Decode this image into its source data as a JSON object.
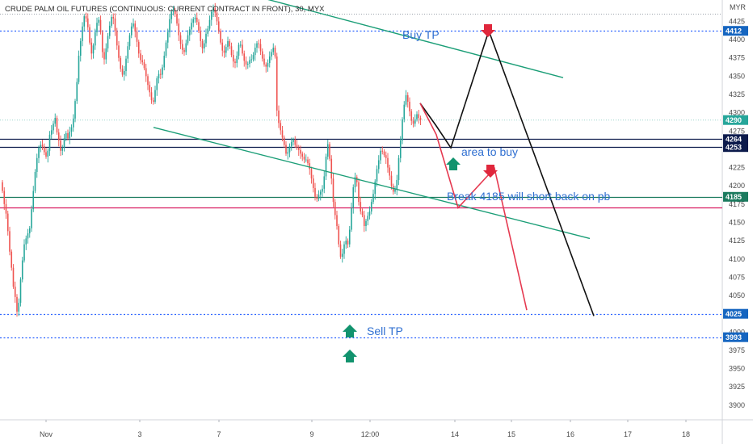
{
  "chart_data": {
    "type": "candlestick",
    "title": "CRUDE PALM OIL FUTURES (CONTINUOUS: CURRENT CONTRACT IN FRONT), 30, MYX",
    "currency": "MYR",
    "y_ticks": [
      4425,
      4400,
      4375,
      4350,
      4325,
      4300,
      4275,
      4250,
      4225,
      4200,
      4175,
      4150,
      4125,
      4100,
      4075,
      4050,
      4025,
      4000,
      3975,
      3950,
      3925,
      3900
    ],
    "ylim": [
      3880,
      4452
    ],
    "x_ticks": [
      "Nov",
      "3",
      "7",
      "9",
      "12:00",
      "14",
      "15",
      "16",
      "17",
      "18"
    ],
    "price_labels": [
      {
        "value": 4412,
        "text": "4412",
        "color": "#1565c0"
      },
      {
        "value": 4290,
        "text": "4290",
        "color": "#26a69a"
      },
      {
        "value": 4264,
        "text": "4264",
        "color": "#0d1b4c"
      },
      {
        "value": 4253,
        "text": "4253",
        "color": "#0d1b4c"
      },
      {
        "value": 4185,
        "text": "4185",
        "color": "#1b7a5e"
      },
      {
        "value": 4025,
        "text": "4025",
        "color": "#1565c0"
      },
      {
        "value": 3993,
        "text": "3993",
        "color": "#1565c0"
      }
    ],
    "horizontal_levels": [
      {
        "value": 4412,
        "style": "dotted",
        "color": "#2962ff"
      },
      {
        "value": 4264,
        "style": "solid",
        "color": "#0d1b4c"
      },
      {
        "value": 4253,
        "style": "solid",
        "color": "#0d1b4c"
      },
      {
        "value": 4185,
        "style": "solid",
        "color": "#1b7a5e"
      },
      {
        "value": 4170,
        "style": "solid",
        "color": "#d81b60"
      },
      {
        "value": 4025,
        "style": "dotted",
        "color": "#2962ff"
      },
      {
        "value": 3993,
        "style": "dotted",
        "color": "#2962ff"
      }
    ],
    "annotations": [
      {
        "text": "Buy TP"
      },
      {
        "text": "area to buy"
      },
      {
        "text": "Break 4185 will short back on pb"
      },
      {
        "text": "Sell TP"
      }
    ],
    "trend_lines": [
      {
        "name": "upper-channel",
        "from": [
          280,
          4470
        ],
        "to": [
          697,
          4348
        ],
        "color": "#1b9e77"
      },
      {
        "name": "lower-channel",
        "from": [
          190,
          4280
        ],
        "to": [
          730,
          4128
        ],
        "color": "#1b9e77"
      }
    ],
    "projection_black": [
      [
        520,
        4313
      ],
      [
        540,
        4282
      ],
      [
        558,
        4252
      ],
      [
        605,
        4412
      ],
      [
        735,
        4022
      ]
    ],
    "projection_red": [
      [
        520,
        4313
      ],
      [
        540,
        4270
      ],
      [
        567,
        4170
      ],
      [
        612,
        4224
      ],
      [
        652,
        4030
      ]
    ],
    "candle_closes": [
      4193,
      4175,
      4162,
      4138,
      4110,
      4088,
      4062,
      4048,
      4028,
      4040,
      4072,
      4098,
      4120,
      4128,
      4135,
      4142,
      4168,
      4193,
      4219,
      4238,
      4252,
      4256,
      4254,
      4246,
      4240,
      4248,
      4270,
      4276,
      4285,
      4293,
      4273,
      4262,
      4248,
      4252,
      4265,
      4272,
      4265,
      4274,
      4280,
      4292,
      4316,
      4342,
      4378,
      4398,
      4418,
      4432,
      4429,
      4417,
      4396,
      4381,
      4392,
      4410,
      4423,
      4427,
      4410,
      4383,
      4373,
      4388,
      4405,
      4419,
      4431,
      4429,
      4412,
      4392,
      4375,
      4360,
      4352,
      4357,
      4374,
      4391,
      4406,
      4418,
      4422,
      4411,
      4397,
      4381,
      4372,
      4369,
      4361,
      4350,
      4338,
      4328,
      4317,
      4315,
      4331,
      4347,
      4353,
      4352,
      4362,
      4378,
      4396,
      4410,
      4428,
      4438,
      4440,
      4435,
      4422,
      4406,
      4394,
      4386,
      4383,
      4395,
      4406,
      4414,
      4423,
      4428,
      4430,
      4424,
      4412,
      4398,
      4388,
      4395,
      4408,
      4415,
      4427,
      4438,
      4443,
      4437,
      4425,
      4412,
      4396,
      4385,
      4382,
      4390,
      4398,
      4391,
      4379,
      4370,
      4368,
      4378,
      4393,
      4393,
      4381,
      4371,
      4366,
      4367,
      4372,
      4373,
      4379,
      4389,
      4395,
      4394,
      4384,
      4374,
      4366,
      4363,
      4368,
      4377,
      4383,
      4389,
      4377,
      4303,
      4286,
      4276,
      4266,
      4256,
      4244,
      4246,
      4254,
      4260,
      4263,
      4256,
      4252,
      4249,
      4244,
      4240,
      4236,
      4236,
      4231,
      4223,
      4210,
      4197,
      4185,
      4182,
      4188,
      4192,
      4196,
      4213,
      4240,
      4257,
      4237,
      4210,
      4178,
      4160,
      4145,
      4120,
      4103,
      4107,
      4120,
      4125,
      4120,
      4140,
      4170,
      4198,
      4212,
      4205,
      4178,
      4165,
      4160,
      4145,
      4152,
      4159,
      4165,
      4178,
      4189,
      4206,
      4223,
      4235,
      4248,
      4247,
      4242,
      4238,
      4225,
      4214,
      4200,
      4192,
      4195,
      4208,
      4238,
      4262,
      4291,
      4311,
      4324,
      4315,
      4302,
      4289,
      4285,
      4291,
      4298,
      4293,
      4290
    ]
  }
}
